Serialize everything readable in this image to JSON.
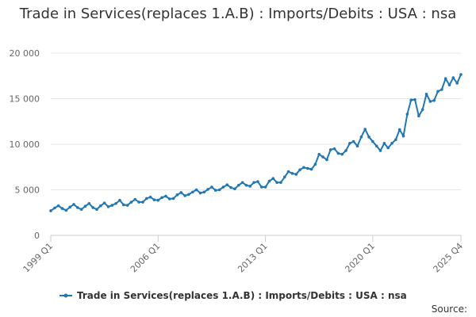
{
  "chart_data": {
    "type": "line",
    "title": "Trade in Services(replaces 1.A.B) : Imports/Debits : USA : nsa",
    "xlabel": "",
    "ylabel": "",
    "ylim": [
      0,
      20000
    ],
    "yticks": [
      "0",
      "5 000",
      "10 000",
      "15 000",
      "20 000"
    ],
    "xticks": [
      "1999 Q1",
      "2006 Q1",
      "2013 Q1",
      "2020 Q1",
      "2025 Q4"
    ],
    "grid": true,
    "legend": "bottom",
    "source_label": "Source:",
    "series": [
      {
        "name": "Trade in Services(replaces 1.A.B) : Imports/Debits : USA : nsa",
        "color": "#1f77b4",
        "x_start": {
          "year": 1999,
          "quarter": 1
        },
        "values": [
          2700,
          3000,
          3250,
          2950,
          2750,
          3100,
          3400,
          3050,
          2850,
          3200,
          3500,
          3050,
          2850,
          3250,
          3550,
          3150,
          3300,
          3500,
          3850,
          3350,
          3300,
          3650,
          3950,
          3650,
          3650,
          4050,
          4200,
          3900,
          3850,
          4150,
          4300,
          4000,
          4050,
          4450,
          4700,
          4350,
          4500,
          4750,
          5000,
          4650,
          4750,
          5050,
          5300,
          4950,
          5000,
          5300,
          5550,
          5250,
          5100,
          5500,
          5800,
          5500,
          5400,
          5800,
          5900,
          5300,
          5300,
          5950,
          6250,
          5800,
          5800,
          6400,
          7000,
          6800,
          6700,
          7200,
          7450,
          7350,
          7250,
          7800,
          8900,
          8600,
          8300,
          9400,
          9500,
          9000,
          8900,
          9300,
          10100,
          10300,
          9800,
          10800,
          11650,
          10800,
          10300,
          9800,
          9300,
          10100,
          9600,
          10100,
          10500,
          11600,
          10900,
          13300,
          14850,
          14900,
          13100,
          13800,
          15500,
          14700,
          14800,
          15800,
          16000,
          17200,
          16500,
          17300,
          16700,
          17650
        ]
      }
    ]
  }
}
